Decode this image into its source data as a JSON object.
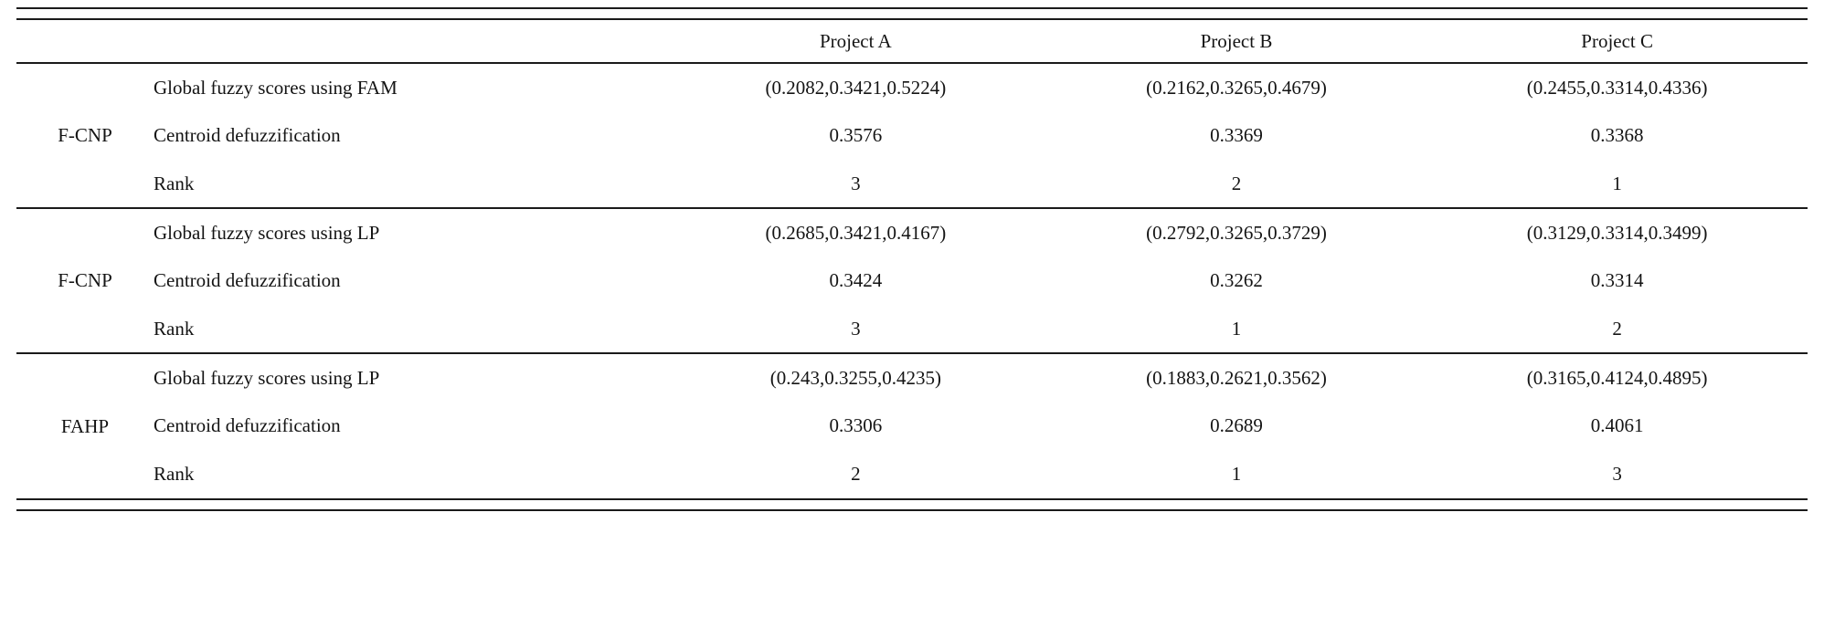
{
  "table": {
    "columns": [
      "",
      "",
      "Project A",
      "Project B",
      "Project C"
    ],
    "groups": [
      {
        "method": "F-CNP",
        "rows": [
          {
            "label": "Global fuzzy scores using FAM",
            "values": [
              "(0.2082,0.3421,0.5224)",
              "(0.2162,0.3265,0.4679)",
              "(0.2455,0.3314,0.4336)"
            ]
          },
          {
            "label": "Centroid defuzzification",
            "values": [
              "0.3576",
              "0.3369",
              "0.3368"
            ]
          },
          {
            "label": "Rank",
            "values": [
              "3",
              "2",
              "1"
            ]
          }
        ]
      },
      {
        "method": "F-CNP",
        "rows": [
          {
            "label": "Global fuzzy scores using LP",
            "values": [
              "(0.2685,0.3421,0.4167)",
              "(0.2792,0.3265,0.3729)",
              "(0.3129,0.3314,0.3499)"
            ]
          },
          {
            "label": "Centroid defuzzification",
            "values": [
              "0.3424",
              "0.3262",
              "0.3314"
            ]
          },
          {
            "label": "Rank",
            "values": [
              "3",
              "1",
              "2"
            ]
          }
        ]
      },
      {
        "method": "FAHP",
        "rows": [
          {
            "label": "Global fuzzy scores using LP",
            "values": [
              "(0.243,0.3255,0.4235)",
              "(0.1883,0.2621,0.3562)",
              "(0.3165,0.4124,0.4895)"
            ]
          },
          {
            "label": "Centroid defuzzification",
            "values": [
              "0.3306",
              "0.2689",
              "0.4061"
            ]
          },
          {
            "label": "Rank",
            "values": [
              "2",
              "1",
              "3"
            ]
          }
        ]
      }
    ]
  }
}
